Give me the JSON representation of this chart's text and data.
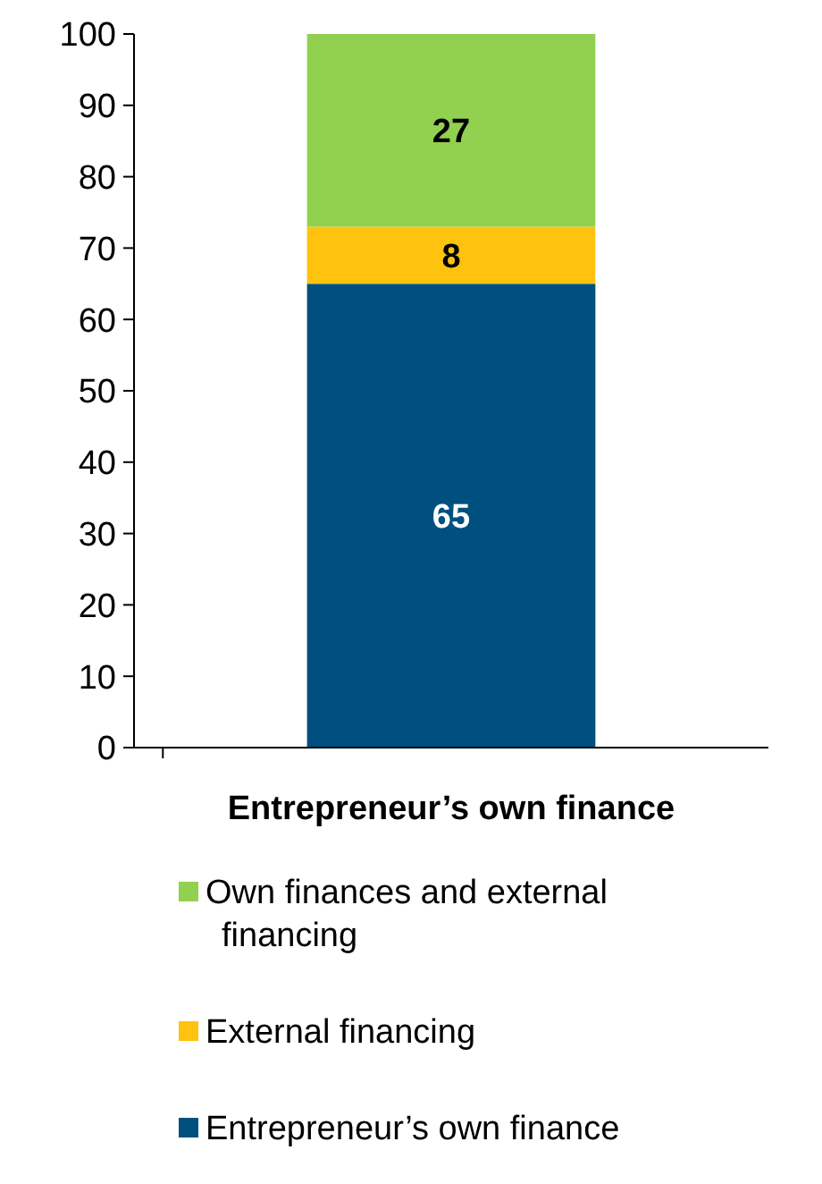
{
  "chart_data": {
    "type": "bar",
    "stacked": true,
    "categories": [
      "Entrepreneur’s own finance"
    ],
    "series": [
      {
        "name": "Entrepreneur’s own finance",
        "color": "#00507f",
        "values": [
          65
        ]
      },
      {
        "name": "External financing",
        "color": "#ffc20e",
        "values": [
          8
        ]
      },
      {
        "name": "Own finances and external financing",
        "color": "#92d050",
        "values": [
          27
        ]
      }
    ],
    "ylim": [
      0,
      100
    ],
    "yticks": [
      0,
      10,
      20,
      30,
      40,
      50,
      60,
      70,
      80,
      90,
      100
    ],
    "grid": false,
    "legend": "bottom",
    "data_labels": true
  }
}
